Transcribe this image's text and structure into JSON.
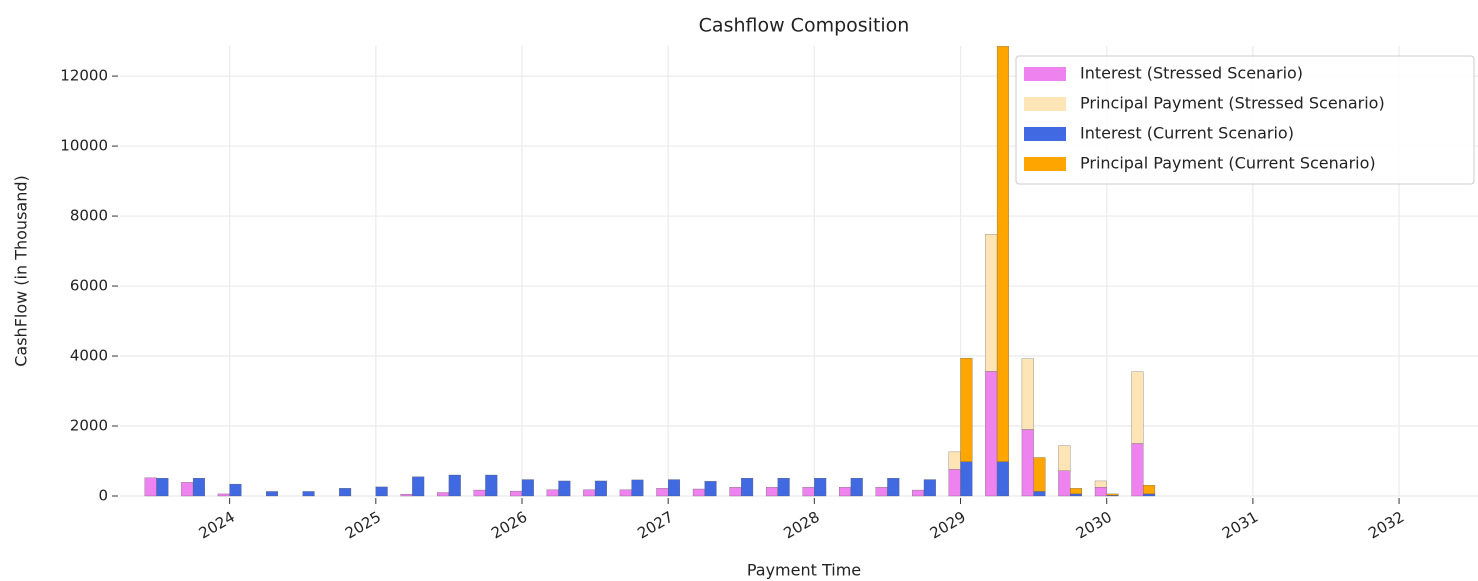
{
  "chart_data": {
    "type": "bar",
    "title": "Cashflow Composition",
    "x_label": "Payment Time",
    "y_label": "CashFlow (in Thousand)",
    "x": [
      2023.5,
      2023.75,
      2024.0,
      2024.25,
      2024.5,
      2024.75,
      2025.0,
      2025.25,
      2025.5,
      2025.75,
      2026.0,
      2026.25,
      2026.5,
      2026.75,
      2027.0,
      2027.25,
      2027.5,
      2027.75,
      2028.0,
      2028.25,
      2028.5,
      2028.75,
      2029.0,
      2029.25,
      2029.5,
      2029.75,
      2030.0,
      2030.25
    ],
    "series": [
      {
        "name": "Interest (Stressed Scenario)",
        "color": "#ee82ee",
        "values": [
          520,
          390,
          60,
          0,
          0,
          0,
          0,
          50,
          100,
          170,
          140,
          180,
          180,
          180,
          220,
          200,
          250,
          250,
          250,
          250,
          250,
          170,
          760,
          3560,
          1900,
          720,
          250,
          1500
        ]
      },
      {
        "name": "Principal Payment (Stressed Scenario)",
        "color": "#ffe4b5",
        "values": [
          0,
          0,
          0,
          0,
          0,
          0,
          0,
          0,
          0,
          0,
          0,
          0,
          0,
          0,
          0,
          0,
          0,
          0,
          0,
          0,
          0,
          0,
          500,
          3920,
          2020,
          720,
          180,
          2050
        ]
      },
      {
        "name": "Interest (Current Scenario)",
        "color": "#4169e1",
        "values": [
          510,
          510,
          340,
          130,
          130,
          220,
          260,
          550,
          600,
          600,
          470,
          430,
          430,
          460,
          470,
          420,
          510,
          510,
          510,
          510,
          510,
          470,
          980,
          980,
          130,
          60,
          20,
          60
        ]
      },
      {
        "name": "Principal Payment (Current Scenario)",
        "color": "#ffa500",
        "values": [
          0,
          0,
          0,
          0,
          0,
          0,
          0,
          0,
          0,
          0,
          0,
          0,
          0,
          0,
          0,
          0,
          0,
          0,
          0,
          0,
          0,
          0,
          2960,
          11870,
          970,
          160,
          40,
          250
        ]
      }
    ],
    "xlim": [
      2023.25,
      2032.54
    ],
    "xticks": [
      2024,
      2025,
      2026,
      2027,
      2028,
      2029,
      2030,
      2031,
      2032
    ],
    "ylim": [
      0,
      12860
    ],
    "yticks": [
      0,
      2000,
      4000,
      6000,
      8000,
      10000,
      12000
    ],
    "grid": true,
    "legend": "upper right"
  }
}
